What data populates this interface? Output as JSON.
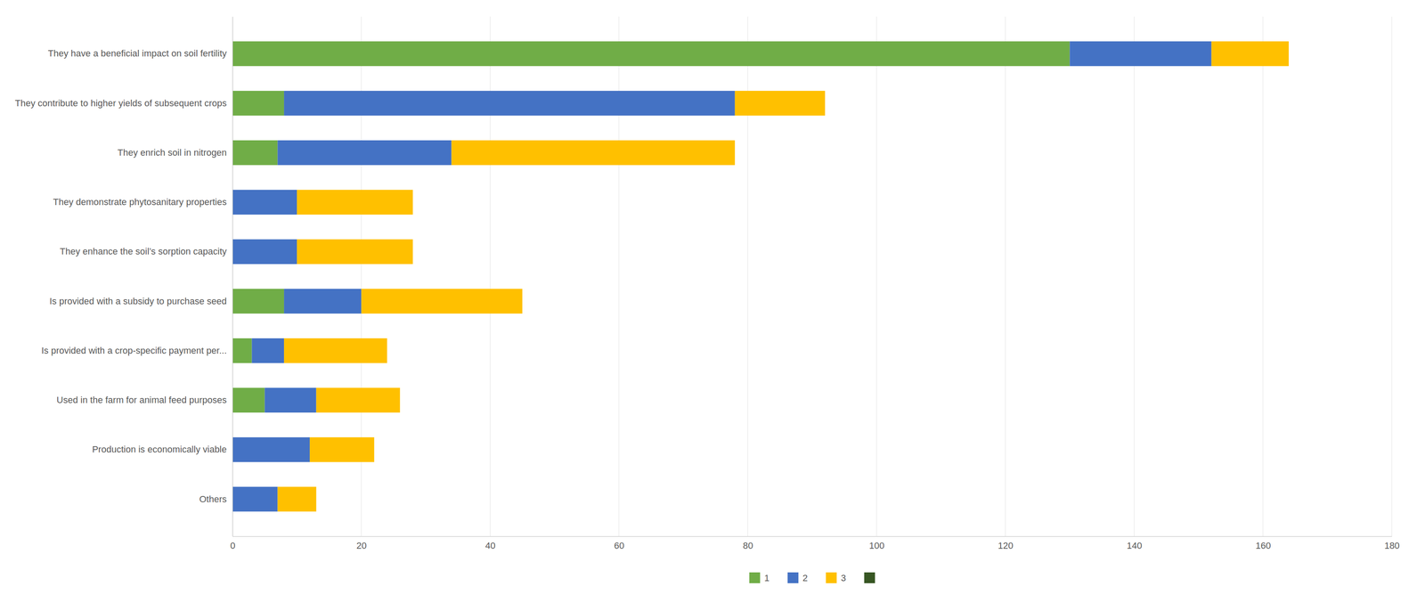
{
  "chart_data": {
    "type": "bar",
    "orientation": "horizontal",
    "stacked": true,
    "categories": [
      "They have a beneficial impact on soil fertility",
      "They contribute to higher yields of subsequent crops",
      "They enrich soil in nitrogen",
      "They demonstrate phytosanitary properties",
      "They enhance the soil’s sorption capacity",
      "Is provided with a subsidy to purchase seed",
      "Is provided with a crop-specific payment per...",
      "Used in the farm for animal feed purposes",
      "Production is economically viable",
      "Others"
    ],
    "series": [
      {
        "name": "1",
        "color": "#70AD47",
        "values": [
          130,
          8,
          7,
          0,
          0,
          8,
          3,
          5,
          0,
          0
        ]
      },
      {
        "name": "2",
        "color": "#4472C4",
        "values": [
          22,
          70,
          27,
          10,
          10,
          12,
          5,
          8,
          12,
          7
        ]
      },
      {
        "name": "3",
        "color": "#FFC000",
        "values": [
          12,
          14,
          44,
          18,
          18,
          25,
          16,
          13,
          10,
          6
        ]
      },
      {
        "color": "#375623",
        "values": [
          0,
          0,
          0,
          0,
          0,
          0,
          0,
          0,
          0,
          0
        ]
      }
    ],
    "xlim": [
      0,
      180
    ],
    "xticks": [
      0,
      20,
      40,
      60,
      80,
      100,
      120,
      140,
      160,
      180
    ],
    "grid": true,
    "legend": "bottom"
  }
}
